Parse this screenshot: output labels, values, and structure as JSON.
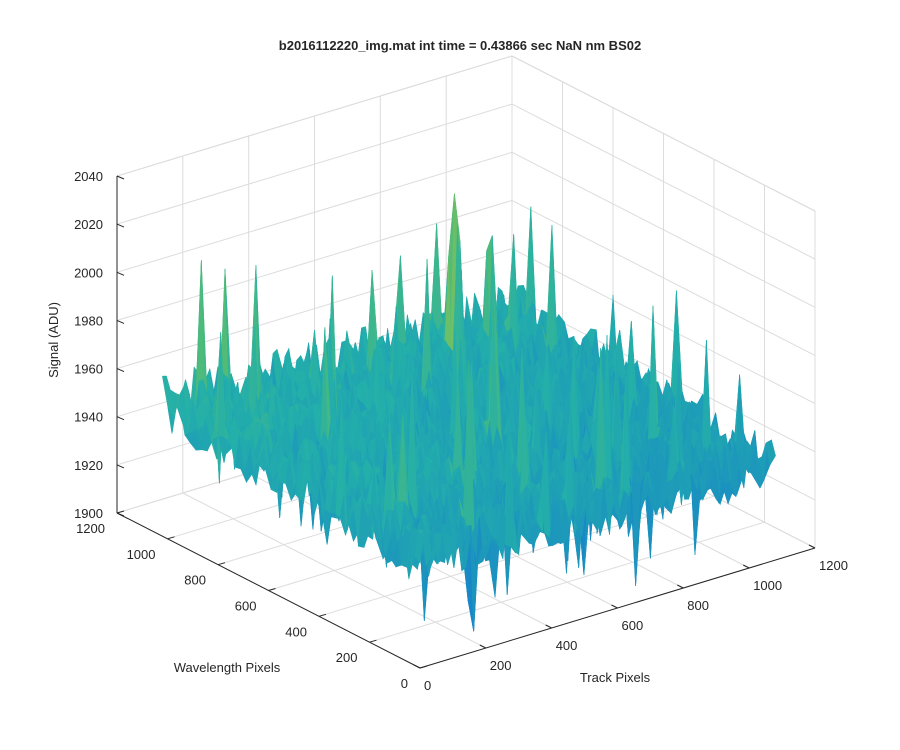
{
  "chart_data": {
    "type": "surface3d",
    "title": "b2016112220_img.mat int time = 0.43866 sec  NaN nm BS02",
    "xlabel": "Track Pixels",
    "ylabel": "Wavelength Pixels",
    "zlabel": "Signal (ADU)",
    "xlim": [
      0,
      1200
    ],
    "ylim": [
      0,
      1200
    ],
    "zlim": [
      1900,
      2040
    ],
    "xticks": [
      "0",
      "200",
      "400",
      "600",
      "800",
      "1000",
      "1200"
    ],
    "yticks": [
      "0",
      "200",
      "400",
      "600",
      "800",
      "1000",
      "1200"
    ],
    "zticks": [
      "1900",
      "1920",
      "1940",
      "1960",
      "1980",
      "2000",
      "2020",
      "2040"
    ],
    "grid": true,
    "colormap": "parula",
    "surface_extent": {
      "x": [
        0,
        1080
      ],
      "y": [
        0,
        1020
      ]
    },
    "surface_mean_signal": 1945,
    "surface_signal_range": [
      1905,
      2012
    ],
    "colors": {
      "low": "#1b7fd4",
      "mid": "#2bb59b",
      "high": "#e8c53a",
      "axis": "#262626",
      "grid": "#dcdcdc"
    }
  }
}
